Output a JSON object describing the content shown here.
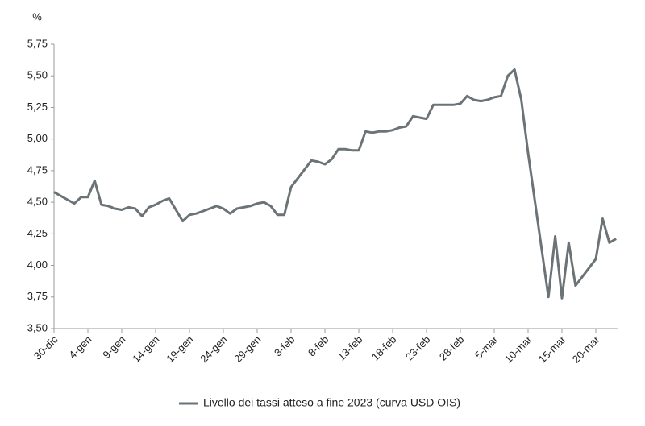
{
  "chart_data": {
    "type": "line",
    "y_label": "%",
    "categories": [
      "30-dic",
      null,
      null,
      null,
      null,
      "4-gen",
      null,
      null,
      null,
      null,
      "9-gen",
      null,
      null,
      null,
      null,
      "14-gen",
      null,
      null,
      null,
      null,
      "19-gen",
      null,
      null,
      null,
      null,
      "24-gen",
      null,
      null,
      null,
      null,
      "29-gen",
      null,
      null,
      null,
      null,
      "3-feb",
      null,
      null,
      null,
      null,
      "8-feb",
      null,
      null,
      null,
      null,
      "13-feb",
      null,
      null,
      null,
      null,
      "18-feb",
      null,
      null,
      null,
      null,
      "23-feb",
      null,
      null,
      null,
      null,
      "28-feb",
      null,
      null,
      null,
      null,
      "5-mar",
      null,
      null,
      null,
      null,
      "10-mar",
      null,
      null,
      null,
      null,
      "15-mar",
      null,
      null,
      null,
      null,
      "20-mar",
      null,
      null,
      null
    ],
    "series": [
      {
        "name": "Livello dei tassi atteso a fine 2023 (curva USD OIS)",
        "color": "#6b7377",
        "values": [
          4.58,
          4.55,
          4.52,
          4.49,
          4.54,
          4.54,
          4.67,
          4.48,
          4.47,
          4.45,
          4.44,
          4.46,
          4.45,
          4.39,
          4.46,
          4.48,
          4.51,
          4.53,
          4.44,
          4.35,
          4.4,
          4.41,
          4.43,
          4.45,
          4.47,
          4.45,
          4.41,
          4.45,
          4.46,
          4.47,
          4.49,
          4.5,
          4.47,
          4.4,
          4.4,
          4.62,
          4.69,
          4.76,
          4.83,
          4.82,
          4.8,
          4.84,
          4.92,
          4.92,
          4.91,
          4.91,
          5.06,
          5.05,
          5.06,
          5.06,
          5.07,
          5.09,
          5.1,
          5.18,
          5.17,
          5.16,
          5.27,
          5.27,
          5.27,
          5.27,
          5.28,
          5.34,
          5.31,
          5.3,
          5.31,
          5.33,
          5.34,
          5.5,
          5.55,
          5.31,
          4.89,
          4.51,
          4.13,
          3.75,
          4.23,
          3.74,
          4.18,
          3.84,
          3.91,
          3.98,
          4.05,
          4.37,
          4.18,
          4.21
        ]
      }
    ],
    "ylim": [
      3.5,
      5.75
    ],
    "yticks": [
      {
        "value": 3.5,
        "label": "3,50"
      },
      {
        "value": 3.75,
        "label": "3,75"
      },
      {
        "value": 4.0,
        "label": "4,00"
      },
      {
        "value": 4.25,
        "label": "4,25"
      },
      {
        "value": 4.5,
        "label": "4,50"
      },
      {
        "value": 4.75,
        "label": "4,75"
      },
      {
        "value": 5.0,
        "label": "5,00"
      },
      {
        "value": 5.25,
        "label": "5,25"
      },
      {
        "value": 5.5,
        "label": "5,50"
      },
      {
        "value": 5.75,
        "label": "5,75"
      }
    ],
    "grid": false,
    "legend": "bottom"
  }
}
